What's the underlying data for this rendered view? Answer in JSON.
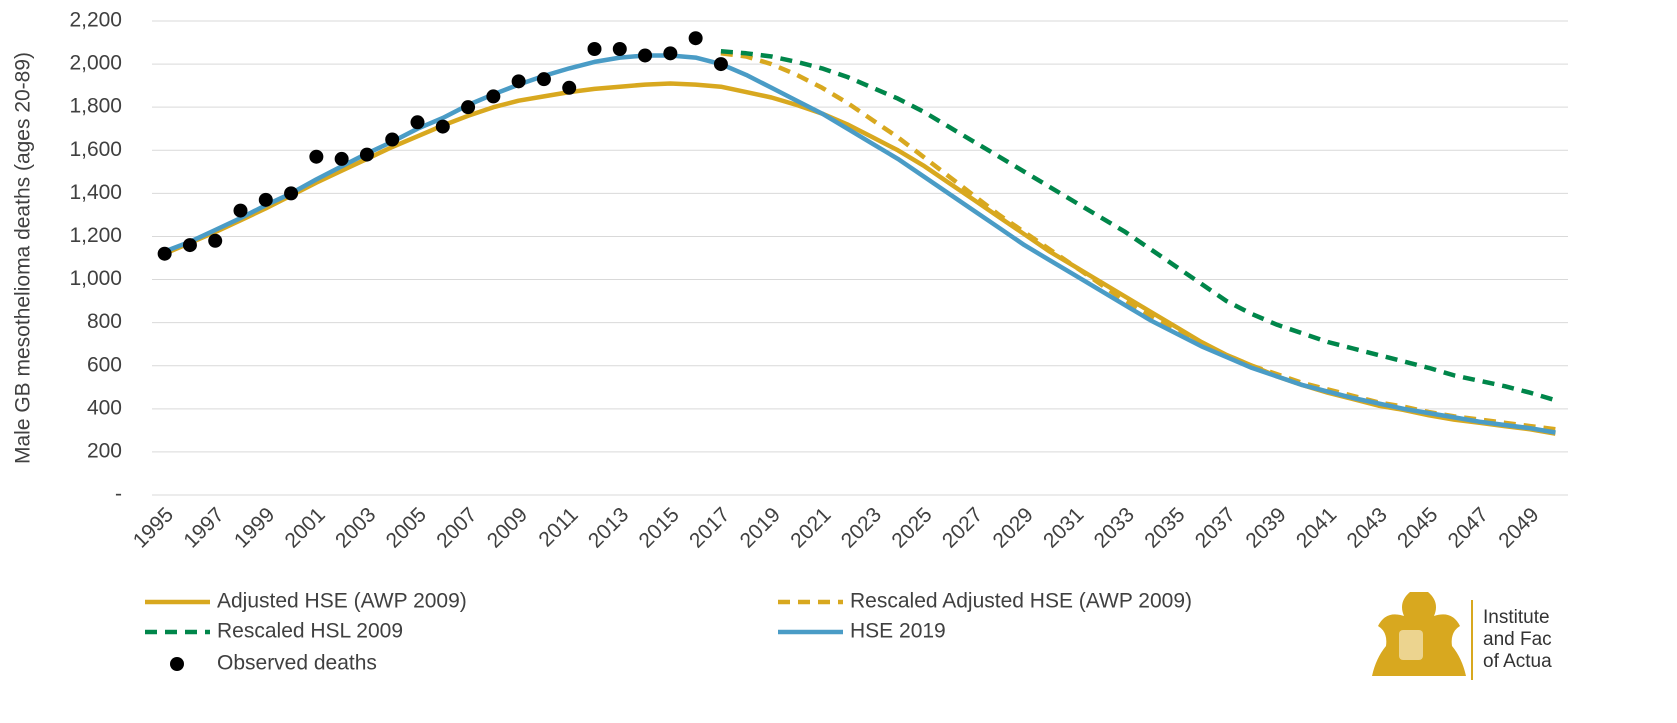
{
  "chart_data": {
    "type": "line",
    "y_label": "Male GB mesothelioma deaths (ages 20-89)",
    "categories": [
      "1995",
      null,
      "1997",
      null,
      "1999",
      null,
      "2001",
      null,
      "2003",
      null,
      "2005",
      null,
      "2007",
      null,
      "2009",
      null,
      "2011",
      null,
      "2013",
      null,
      "2015",
      null,
      "2017",
      null,
      "2019",
      null,
      "2021",
      null,
      "2023",
      null,
      "2025",
      null,
      "2027",
      null,
      "2029",
      null,
      "2031",
      null,
      "2033",
      null,
      "2035",
      null,
      "2037",
      null,
      "2039",
      null,
      "2041",
      null,
      "2043",
      null,
      "2045",
      null,
      "2047",
      null,
      "2049",
      null
    ],
    "ylim": [
      0,
      2200
    ],
    "yticks": [
      {
        "value": 0,
        "label": "-"
      },
      200,
      400,
      600,
      800,
      {
        "value": 1000,
        "label": "1,000"
      },
      {
        "value": 1200,
        "label": "1,200"
      },
      {
        "value": 1400,
        "label": "1,400"
      },
      {
        "value": 1600,
        "label": "1,600"
      },
      {
        "value": 1800,
        "label": "1,800"
      },
      {
        "value": 2000,
        "label": "2,000"
      },
      {
        "value": 2200,
        "label": "2,200"
      }
    ],
    "grid": true,
    "series": [
      {
        "name": "Adjusted HSE (AWP 2009)",
        "color": "#d8a81f",
        "style": "solid",
        "values": [
          1120,
          1170,
          1220,
          1275,
          1330,
          1390,
          1450,
          1505,
          1560,
          1615,
          1665,
          1715,
          1760,
          1800,
          1830,
          1850,
          1870,
          1885,
          1895,
          1905,
          1910,
          1905,
          1895,
          1870,
          1845,
          1810,
          1770,
          1720,
          1660,
          1600,
          1530,
          1450,
          1370,
          1290,
          1210,
          1130,
          1060,
          990,
          920,
          850,
          780,
          710,
          650,
          600,
          550,
          510,
          475,
          445,
          415,
          395,
          370,
          350,
          335,
          320,
          305,
          285
        ]
      },
      {
        "name": "Rescaled Adjusted HSE (AWP 2009)",
        "color": "#d8a81f",
        "style": "dashed",
        "values": [
          null,
          null,
          null,
          null,
          null,
          null,
          null,
          null,
          null,
          null,
          null,
          null,
          null,
          null,
          null,
          null,
          null,
          null,
          null,
          null,
          null,
          null,
          2050,
          2035,
          2000,
          1950,
          1890,
          1820,
          1740,
          1660,
          1570,
          1480,
          1390,
          1300,
          1220,
          1140,
          1060,
          980,
          900,
          830,
          760,
          700,
          650,
          600,
          560,
          520,
          490,
          460,
          430,
          410,
          385,
          365,
          350,
          335,
          320,
          305
        ]
      },
      {
        "name": "Rescaled HSL 2009",
        "color": "#00864a",
        "style": "dashed",
        "values": [
          null,
          null,
          null,
          null,
          null,
          null,
          null,
          null,
          null,
          null,
          null,
          null,
          null,
          null,
          null,
          null,
          null,
          null,
          null,
          null,
          null,
          null,
          2060,
          2050,
          2035,
          2010,
          1980,
          1940,
          1890,
          1840,
          1780,
          1710,
          1640,
          1570,
          1500,
          1430,
          1360,
          1290,
          1220,
          1140,
          1060,
          980,
          900,
          840,
          790,
          750,
          710,
          680,
          650,
          620,
          590,
          555,
          530,
          505,
          475,
          440
        ]
      },
      {
        "name": "HSE 2019",
        "color": "#4a9cc6",
        "style": "solid",
        "values": [
          1130,
          1175,
          1230,
          1285,
          1345,
          1400,
          1465,
          1525,
          1585,
          1640,
          1700,
          1750,
          1810,
          1860,
          1905,
          1945,
          1980,
          2010,
          2030,
          2040,
          2040,
          2030,
          2000,
          1950,
          1890,
          1830,
          1770,
          1700,
          1630,
          1560,
          1480,
          1400,
          1320,
          1240,
          1160,
          1090,
          1020,
          950,
          880,
          810,
          750,
          690,
          640,
          590,
          550,
          510,
          480,
          450,
          425,
          400,
          380,
          360,
          340,
          325,
          310,
          290
        ]
      },
      {
        "name": "Observed deaths",
        "color": "#000000",
        "style": "markers",
        "values": [
          1120,
          1160,
          1180,
          1320,
          1370,
          1400,
          1570,
          1560,
          1580,
          1650,
          1730,
          1710,
          1800,
          1850,
          1920,
          1930,
          1890,
          2070,
          2070,
          2040,
          2050,
          2120,
          2000,
          null,
          null,
          null,
          null,
          null,
          null,
          null,
          null,
          null,
          null,
          null,
          null,
          null,
          null,
          null,
          null,
          null,
          null,
          null,
          null,
          null,
          null,
          null,
          null,
          null,
          null,
          null,
          null,
          null,
          null,
          null,
          null,
          null
        ]
      }
    ]
  },
  "logo": {
    "lines": [
      "Institute",
      "and Fac",
      "of Actua"
    ]
  }
}
